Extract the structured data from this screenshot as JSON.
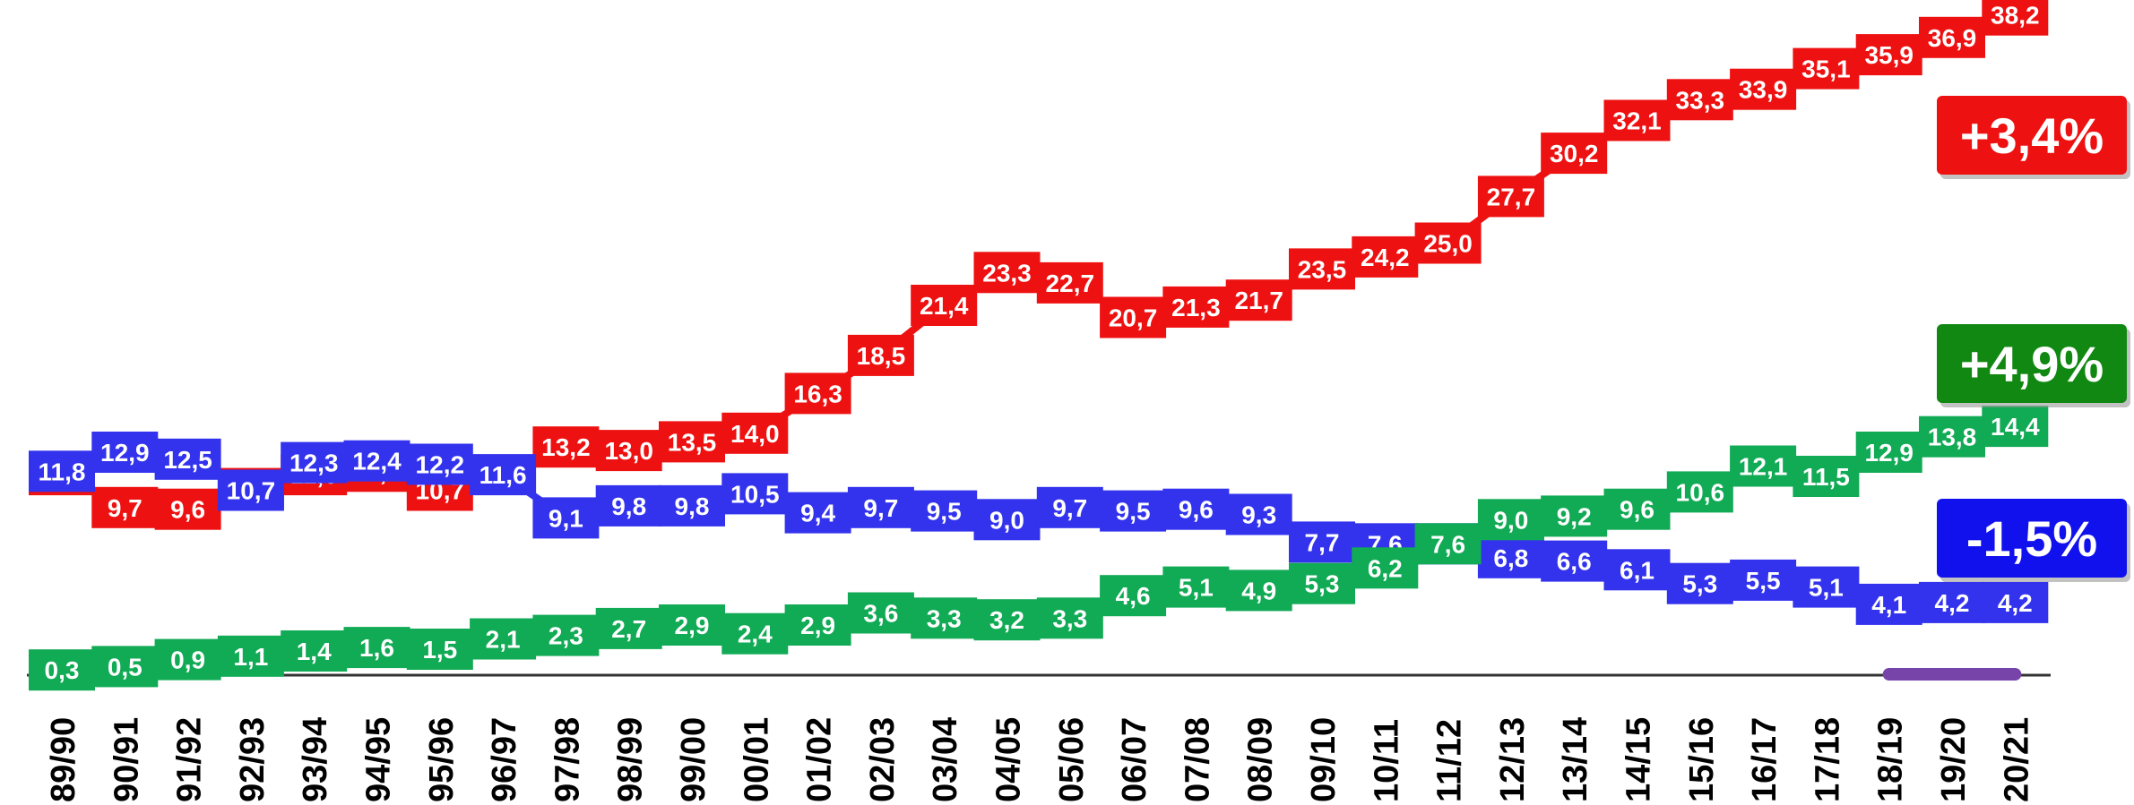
{
  "chart_data": {
    "type": "line",
    "title": "",
    "xlabel": "",
    "ylabel": "",
    "ylim": [
      0,
      40
    ],
    "grid": false,
    "legend": "none",
    "categories": [
      "89/90",
      "90/91",
      "91/92",
      "92/93",
      "93/94",
      "94/95",
      "95/96",
      "96/97",
      "97/98",
      "98/99",
      "99/00",
      "00/01",
      "01/02",
      "02/03",
      "03/04",
      "04/05",
      "05/06",
      "06/07",
      "07/08",
      "08/09",
      "09/10",
      "10/11",
      "11/12",
      "12/13",
      "13/14",
      "14/15",
      "15/16",
      "16/17",
      "17/18",
      "18/19",
      "19/20",
      "20/21"
    ],
    "series": [
      {
        "color": "#ee1111",
        "values": [
          11.6,
          9.7,
          9.6,
          10.8,
          11.6,
          11.8,
          10.7,
          null,
          13.2,
          13.0,
          13.5,
          14.0,
          16.3,
          18.5,
          21.4,
          23.3,
          22.7,
          20.7,
          21.3,
          21.7,
          23.5,
          24.2,
          25.0,
          27.7,
          30.2,
          32.1,
          33.3,
          33.9,
          35.1,
          35.9,
          36.9,
          38.2
        ],
        "labels": [
          "11,6",
          "9,7",
          "9,6",
          "10,8",
          "11,6",
          "11,8",
          "10,7",
          "",
          "13,2",
          "13,0",
          "13,5",
          "14,0",
          "16,3",
          "18,5",
          "21,4",
          "23,3",
          "22,7",
          "20,7",
          "21,3",
          "21,7",
          "23,5",
          "24,2",
          "25,0",
          "27,7",
          "30,2",
          "32,1",
          "33,3",
          "33,9",
          "35,1",
          "35,9",
          "36,9",
          "38,2"
        ]
      },
      {
        "color": "#3333ee",
        "values": [
          11.8,
          12.9,
          12.5,
          10.7,
          12.3,
          12.4,
          12.2,
          11.6,
          9.1,
          9.8,
          9.8,
          10.5,
          9.4,
          9.7,
          9.5,
          9.0,
          9.7,
          9.5,
          9.6,
          9.3,
          7.7,
          7.6,
          7.6,
          6.8,
          6.6,
          6.1,
          5.3,
          5.5,
          5.1,
          4.1,
          4.2,
          4.2
        ],
        "labels": [
          "11,8",
          "12,9",
          "12,5",
          "10,7",
          "12,3",
          "12,4",
          "12,2",
          "11,6",
          "9,1",
          "9,8",
          "9,8",
          "10,5",
          "9,4",
          "9,7",
          "9,5",
          "9,0",
          "9,7",
          "9,5",
          "9,6",
          "9,3",
          "7,7",
          "7,6",
          "7,6",
          "6,8",
          "6,6",
          "6,1",
          "5,3",
          "5,5",
          "5,1",
          "4,1",
          "4,2",
          "4,2"
        ]
      },
      {
        "color": "#11aa55",
        "values": [
          0.3,
          0.5,
          0.9,
          1.1,
          1.4,
          1.6,
          1.5,
          2.1,
          2.3,
          2.7,
          2.9,
          2.4,
          2.9,
          3.6,
          3.3,
          3.2,
          3.3,
          4.6,
          5.1,
          4.9,
          5.3,
          6.2,
          7.6,
          9.0,
          9.2,
          9.6,
          10.6,
          12.1,
          11.5,
          12.9,
          13.8,
          14.4
        ],
        "labels": [
          "0,3",
          "0,5",
          "0,9",
          "1,1",
          "1,4",
          "1,6",
          "1,5",
          "2,1",
          "2,3",
          "2,7",
          "2,9",
          "2,4",
          "2,9",
          "3,6",
          "3,3",
          "3,2",
          "3,3",
          "4,6",
          "5,1",
          "4,9",
          "5,3",
          "6,2",
          "7,6",
          "9,0",
          "9,2",
          "9,6",
          "10,6",
          "12,1",
          "11,5",
          "12,9",
          "13,8",
          "14,4"
        ]
      },
      {
        "color": "#7744aa",
        "values": [
          null,
          null,
          null,
          null,
          null,
          null,
          null,
          null,
          null,
          null,
          null,
          null,
          null,
          null,
          null,
          null,
          null,
          null,
          null,
          null,
          null,
          null,
          null,
          null,
          null,
          null,
          null,
          null,
          null,
          0.05,
          0.05,
          0.05
        ],
        "labels": []
      }
    ],
    "badges": [
      {
        "text": "+3,4%",
        "color": "#ee1111",
        "series": 0
      },
      {
        "text": "+4,9%",
        "color": "#118811",
        "series": 2
      },
      {
        "text": "-1,5%",
        "color": "#1111ee",
        "series": 1
      }
    ]
  }
}
